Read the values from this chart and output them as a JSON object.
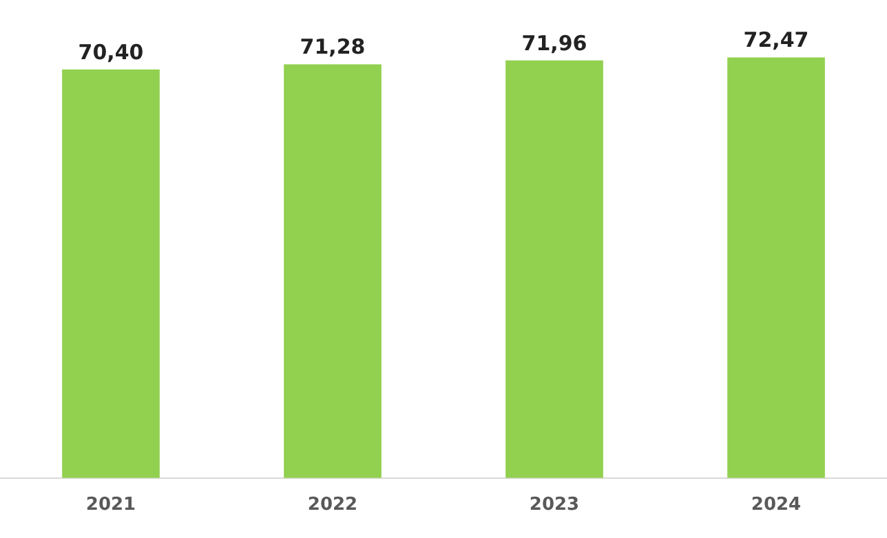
{
  "chart_data": {
    "type": "bar",
    "categories": [
      "2021",
      "2022",
      "2023",
      "2024"
    ],
    "values": [
      70.4,
      71.28,
      71.96,
      72.47
    ],
    "color": "#92d050",
    "value_labels": [
      "70,40",
      "71,28",
      "71,96",
      "72,47"
    ],
    "tick_labels": "x",
    "grid": false,
    "legend": false
  }
}
